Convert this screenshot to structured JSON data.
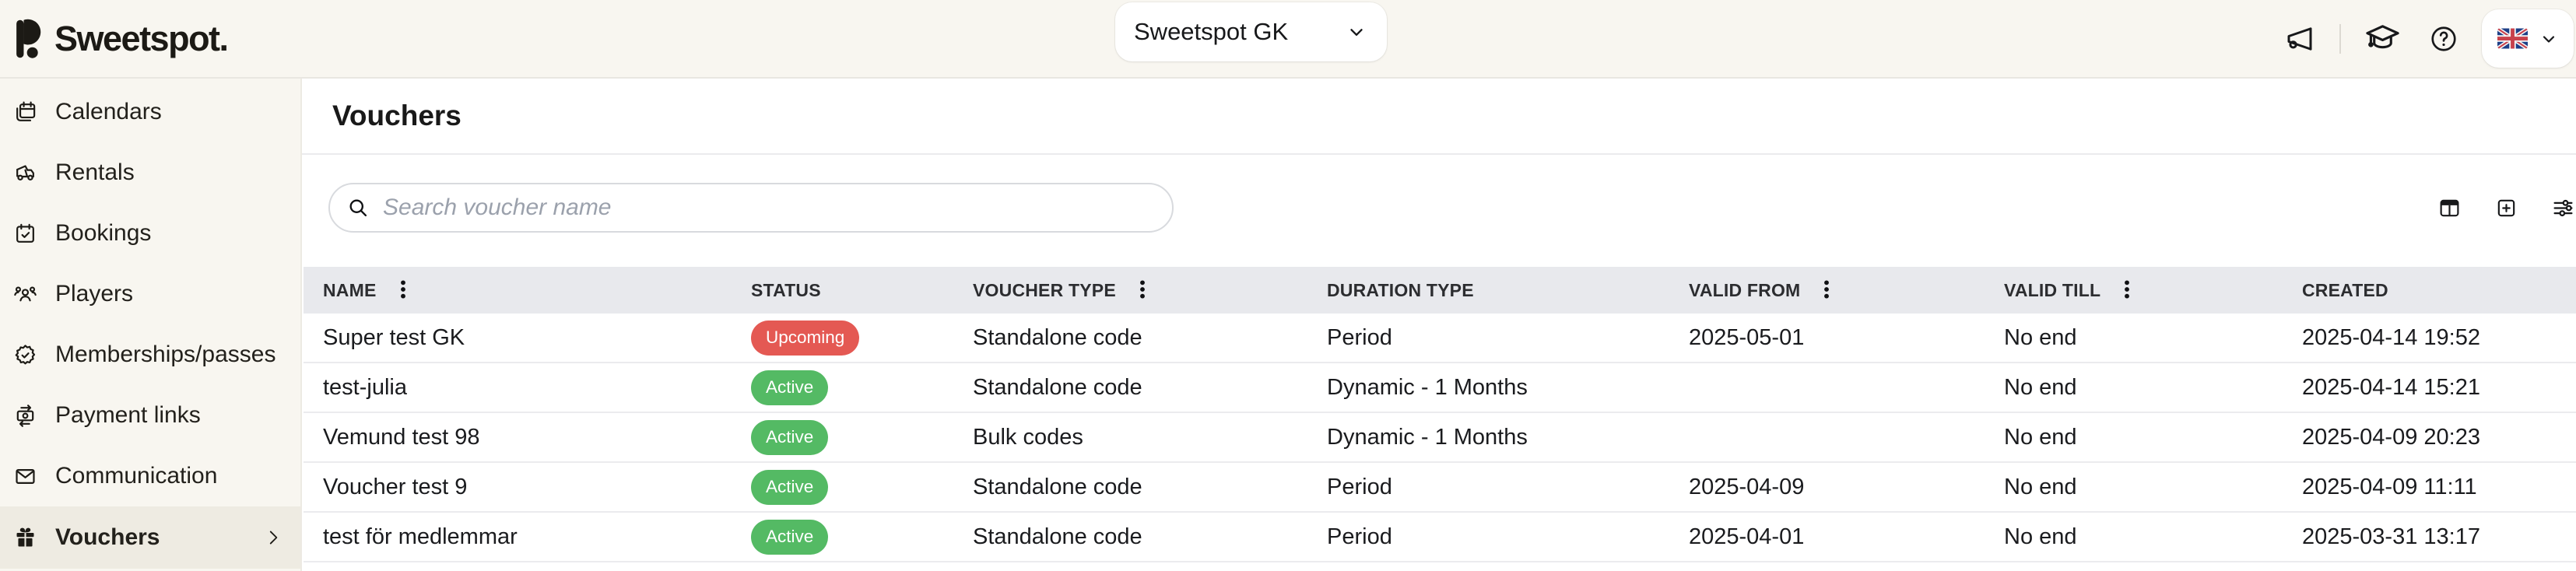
{
  "brand": {
    "name": "Sweetspot."
  },
  "topbar": {
    "club_selector": {
      "value": "Sweetspot GK"
    },
    "icons": [
      "megaphone-icon",
      "graduation-cap-icon",
      "help-icon"
    ],
    "language": {
      "country": "United Kingdom",
      "flag": "uk-flag-icon"
    }
  },
  "sidebar": {
    "items": [
      {
        "label": "Calendars",
        "icon": "calendars-icon",
        "active": false
      },
      {
        "label": "Rentals",
        "icon": "golf-cart-icon",
        "active": false
      },
      {
        "label": "Bookings",
        "icon": "calendar-check-icon",
        "active": false
      },
      {
        "label": "Players",
        "icon": "players-icon",
        "active": false
      },
      {
        "label": "Memberships/passes",
        "icon": "membership-badge-icon",
        "active": false
      },
      {
        "label": "Payment links",
        "icon": "payment-icon",
        "active": false
      },
      {
        "label": "Communication",
        "icon": "mail-icon",
        "active": false
      },
      {
        "label": "Vouchers",
        "icon": "gift-icon",
        "active": true,
        "has_submenu": true
      }
    ]
  },
  "page": {
    "title": "Vouchers"
  },
  "toolbar": {
    "search_placeholder": "Search voucher name",
    "icons": [
      "column-visibility-icon",
      "add-square-icon",
      "filters-icon"
    ]
  },
  "table": {
    "columns": [
      {
        "key": "name",
        "label": "NAME",
        "menu": true
      },
      {
        "key": "status",
        "label": "STATUS",
        "menu": false
      },
      {
        "key": "voucher_type",
        "label": "VOUCHER TYPE",
        "menu": true
      },
      {
        "key": "duration_type",
        "label": "DURATION TYPE",
        "menu": false
      },
      {
        "key": "valid_from",
        "label": "VALID FROM",
        "menu": true
      },
      {
        "key": "valid_till",
        "label": "VALID TILL",
        "menu": true
      },
      {
        "key": "created",
        "label": "CREATED",
        "menu": false
      }
    ],
    "rows": [
      {
        "name": "Super test GK",
        "status": "Upcoming",
        "status_variant": "upcoming",
        "voucher_type": "Standalone code",
        "duration_type": "Period",
        "valid_from": "2025-05-01",
        "valid_till": "No end",
        "created": "2025-04-14 19:52"
      },
      {
        "name": "test-julia",
        "status": "Active",
        "status_variant": "active",
        "voucher_type": "Standalone code",
        "duration_type": "Dynamic - 1 Months",
        "valid_from": "",
        "valid_till": "No end",
        "created": "2025-04-14 15:21"
      },
      {
        "name": "Vemund test 98",
        "status": "Active",
        "status_variant": "active",
        "voucher_type": "Bulk codes",
        "duration_type": "Dynamic - 1 Months",
        "valid_from": "",
        "valid_till": "No end",
        "created": "2025-04-09 20:23"
      },
      {
        "name": "Voucher test 9",
        "status": "Active",
        "status_variant": "active",
        "voucher_type": "Standalone code",
        "duration_type": "Period",
        "valid_from": "2025-04-09",
        "valid_till": "No end",
        "created": "2025-04-09 11:11"
      },
      {
        "name": "test för medlemmar",
        "status": "Active",
        "status_variant": "active",
        "voucher_type": "Standalone code",
        "duration_type": "Period",
        "valid_from": "2025-04-01",
        "valid_till": "No end",
        "created": "2025-03-31 13:17"
      }
    ]
  },
  "colors": {
    "background": "#f8f6f0",
    "sidebar_active": "#eeebe2",
    "table_header_bg": "#e8e9ed",
    "status_active": "#54ba64",
    "status_upcoming": "#e45953",
    "text": "#1d1d1f"
  }
}
